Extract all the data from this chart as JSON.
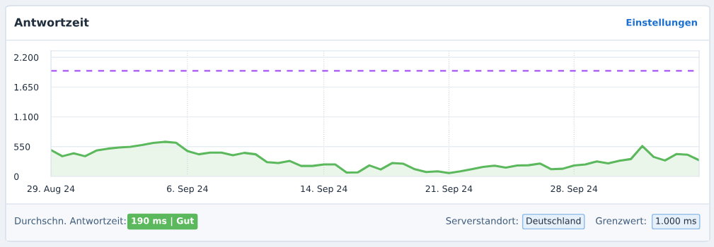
{
  "chart_data": {
    "type": "area",
    "title": "Antwortzeit",
    "categories": [
      "29. Aug 24",
      null,
      null,
      null,
      null,
      null,
      null,
      null,
      null,
      null,
      null,
      null,
      "6. Sep 24",
      null,
      null,
      null,
      null,
      null,
      null,
      null,
      null,
      null,
      null,
      null,
      "14. Sep 24",
      null,
      null,
      null,
      null,
      null,
      null,
      null,
      null,
      null,
      null,
      "21. Sep 24",
      null,
      null,
      null,
      null,
      null,
      null,
      null,
      null,
      null,
      null,
      "28. Sep 24",
      null,
      null,
      null,
      null,
      null,
      null,
      null,
      null,
      null,
      null,
      null
    ],
    "series": [
      {
        "color": "#5cb85c",
        "values": [
          487,
          373,
          426,
          373,
          478,
          513,
          535,
          548,
          579,
          618,
          640,
          622,
          469,
          409,
          439,
          439,
          390,
          435,
          409,
          264,
          247,
          286,
          194,
          194,
          221,
          221,
          72,
          76,
          203,
          129,
          247,
          234,
          133,
          81,
          94,
          63,
          94,
          133,
          177,
          199,
          164,
          203,
          207,
          238,
          133,
          142,
          203,
          221,
          277,
          242,
          290,
          321,
          561,
          360,
          295,
          413,
          400,
          299
        ]
      }
    ],
    "ylim": [
      0,
      2320
    ],
    "yticks": [
      0,
      550,
      {
        "value": 1100,
        "label": "1.100"
      },
      {
        "value": 1650,
        "label": "1.650"
      },
      {
        "value": 2200,
        "label": "2.200"
      }
    ],
    "ref_lines": [
      {
        "axis": "y",
        "value": 1950,
        "color": "#a855f7",
        "line_style": "dashed"
      }
    ],
    "grid": true,
    "legend": false,
    "annotations": [
      "Einstellungen",
      "Durchschn. Antwortzeit:",
      "190 ms | Gut",
      "Serverstandort:",
      "Deutschland",
      "Grenzwert:",
      "1.000 ms"
    ]
  }
}
